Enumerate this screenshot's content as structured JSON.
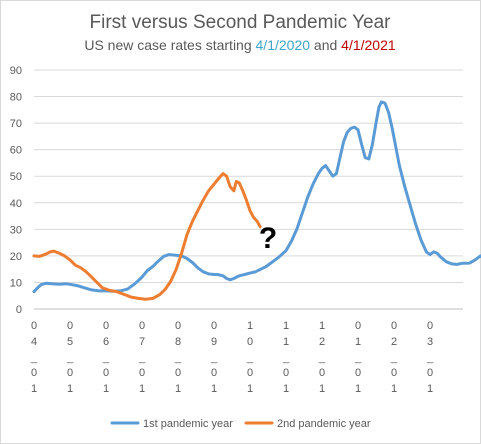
{
  "chart_data": {
    "type": "line",
    "title": "First versus Second Pandemic Year",
    "subtitle": {
      "prefix": "US new case rates starting ",
      "date1": "4/1/2020",
      "middle": " and ",
      "date2": "4/1/2021"
    },
    "xlabel": "",
    "ylabel": "",
    "ylim": [
      0,
      90
    ],
    "yticks": [
      0,
      10,
      20,
      30,
      40,
      50,
      60,
      70,
      80,
      90
    ],
    "grid": true,
    "legend_position": "bottom",
    "x_tick_labels": [
      [
        "0",
        "4",
        "_",
        "0",
        "1"
      ],
      [
        "0",
        "5",
        "_",
        "0",
        "1"
      ],
      [
        "0",
        "6",
        "_",
        "0",
        "1"
      ],
      [
        "0",
        "7",
        "_",
        "0",
        "1"
      ],
      [
        "0",
        "8",
        "_",
        "0",
        "1"
      ],
      [
        "0",
        "9",
        "_",
        "0",
        "1"
      ],
      [
        "1",
        "0",
        "_",
        "0",
        "1"
      ],
      [
        "1",
        "1",
        "_",
        "0",
        "1"
      ],
      [
        "1",
        "2",
        "_",
        "0",
        "1"
      ],
      [
        "0",
        "1",
        "_",
        "0",
        "1"
      ],
      [
        "0",
        "2",
        "_",
        "0",
        "1"
      ],
      [
        "0",
        "3",
        "_",
        "0",
        "1"
      ]
    ],
    "x_month_count": 12,
    "annotation": "?",
    "series": [
      {
        "name": "1st pandemic year",
        "color": "#5b9bd5",
        "points": [
          [
            0.0,
            6.5
          ],
          [
            0.1,
            8
          ],
          [
            0.2,
            9.2
          ],
          [
            0.35,
            9.7
          ],
          [
            0.5,
            9.5
          ],
          [
            0.7,
            9.3
          ],
          [
            0.9,
            9.5
          ],
          [
            1.0,
            9.3
          ],
          [
            1.2,
            8.8
          ],
          [
            1.4,
            8.0
          ],
          [
            1.6,
            7.2
          ],
          [
            1.8,
            6.8
          ],
          [
            2.0,
            6.8
          ],
          [
            2.2,
            6.7
          ],
          [
            2.4,
            6.8
          ],
          [
            2.6,
            7.5
          ],
          [
            2.8,
            9.5
          ],
          [
            3.0,
            12.0
          ],
          [
            3.15,
            14.5
          ],
          [
            3.3,
            16.0
          ],
          [
            3.45,
            18.0
          ],
          [
            3.6,
            19.8
          ],
          [
            3.75,
            20.5
          ],
          [
            3.9,
            20.3
          ],
          [
            4.1,
            20.0
          ],
          [
            4.25,
            19.0
          ],
          [
            4.4,
            17.5
          ],
          [
            4.55,
            15.5
          ],
          [
            4.7,
            14.0
          ],
          [
            4.85,
            13.2
          ],
          [
            5.0,
            13.0
          ],
          [
            5.1,
            13.0
          ],
          [
            5.25,
            12.5
          ],
          [
            5.35,
            11.5
          ],
          [
            5.45,
            11.0
          ],
          [
            5.55,
            11.5
          ],
          [
            5.7,
            12.5
          ],
          [
            5.85,
            13.0
          ],
          [
            6.0,
            13.5
          ],
          [
            6.15,
            14.0
          ],
          [
            6.3,
            15.0
          ],
          [
            6.45,
            16.0
          ],
          [
            6.6,
            17.5
          ],
          [
            6.8,
            19.5
          ],
          [
            7.0,
            22.0
          ],
          [
            7.15,
            25.5
          ],
          [
            7.3,
            30.0
          ],
          [
            7.45,
            36.0
          ],
          [
            7.6,
            42.0
          ],
          [
            7.75,
            47.0
          ],
          [
            7.9,
            51.0
          ],
          [
            8.0,
            53.0
          ],
          [
            8.1,
            54.0
          ],
          [
            8.2,
            52.0
          ],
          [
            8.3,
            50.0
          ],
          [
            8.4,
            51.0
          ],
          [
            8.5,
            57.0
          ],
          [
            8.6,
            63.0
          ],
          [
            8.7,
            66.5
          ],
          [
            8.8,
            68.0
          ],
          [
            8.9,
            68.5
          ],
          [
            9.0,
            67.5
          ],
          [
            9.1,
            62.0
          ],
          [
            9.2,
            57.0
          ],
          [
            9.3,
            56.5
          ],
          [
            9.4,
            62.0
          ],
          [
            9.5,
            70.0
          ],
          [
            9.58,
            76.0
          ],
          [
            9.65,
            78.0
          ],
          [
            9.75,
            77.5
          ],
          [
            9.85,
            74.0
          ],
          [
            9.95,
            68.0
          ],
          [
            10.05,
            61.0
          ],
          [
            10.15,
            54.0
          ],
          [
            10.3,
            46.0
          ],
          [
            10.45,
            39.0
          ],
          [
            10.6,
            32.0
          ],
          [
            10.75,
            26.0
          ],
          [
            10.9,
            21.5
          ],
          [
            11.0,
            20.5
          ],
          [
            11.1,
            21.5
          ],
          [
            11.2,
            21.0
          ],
          [
            11.3,
            19.5
          ],
          [
            11.45,
            17.8
          ],
          [
            11.6,
            17.0
          ],
          [
            11.75,
            16.8
          ],
          [
            11.9,
            17.2
          ],
          [
            12.1,
            17.3
          ],
          [
            12.25,
            18.5
          ],
          [
            12.4,
            20.0
          ],
          [
            12.5,
            19.0
          ]
        ]
      },
      {
        "name": "2nd pandemic year",
        "color": "#ed7d31",
        "points": [
          [
            0.0,
            20.0
          ],
          [
            0.15,
            19.8
          ],
          [
            0.3,
            20.5
          ],
          [
            0.45,
            21.5
          ],
          [
            0.55,
            21.8
          ],
          [
            0.7,
            21.0
          ],
          [
            0.85,
            20.0
          ],
          [
            1.0,
            18.5
          ],
          [
            1.15,
            16.5
          ],
          [
            1.3,
            15.5
          ],
          [
            1.45,
            14.0
          ],
          [
            1.6,
            12.0
          ],
          [
            1.75,
            10.0
          ],
          [
            1.9,
            8.0
          ],
          [
            2.1,
            7.0
          ],
          [
            2.3,
            6.5
          ],
          [
            2.5,
            5.5
          ],
          [
            2.7,
            4.5
          ],
          [
            2.9,
            4.0
          ],
          [
            3.1,
            3.7
          ],
          [
            3.3,
            4.0
          ],
          [
            3.5,
            5.5
          ],
          [
            3.65,
            7.5
          ],
          [
            3.8,
            10.5
          ],
          [
            3.95,
            15.0
          ],
          [
            4.1,
            21.0
          ],
          [
            4.25,
            28.0
          ],
          [
            4.4,
            33.0
          ],
          [
            4.55,
            37.0
          ],
          [
            4.7,
            41.0
          ],
          [
            4.85,
            44.5
          ],
          [
            5.0,
            47.0
          ],
          [
            5.15,
            49.5
          ],
          [
            5.25,
            51.0
          ],
          [
            5.35,
            50.0
          ],
          [
            5.45,
            46.0
          ],
          [
            5.55,
            44.5
          ],
          [
            5.62,
            48.0
          ],
          [
            5.7,
            47.5
          ],
          [
            5.8,
            44.5
          ],
          [
            5.9,
            41.0
          ],
          [
            6.0,
            37.0
          ],
          [
            6.1,
            34.5
          ],
          [
            6.2,
            33.0
          ],
          [
            6.28,
            31.0
          ]
        ]
      }
    ]
  }
}
